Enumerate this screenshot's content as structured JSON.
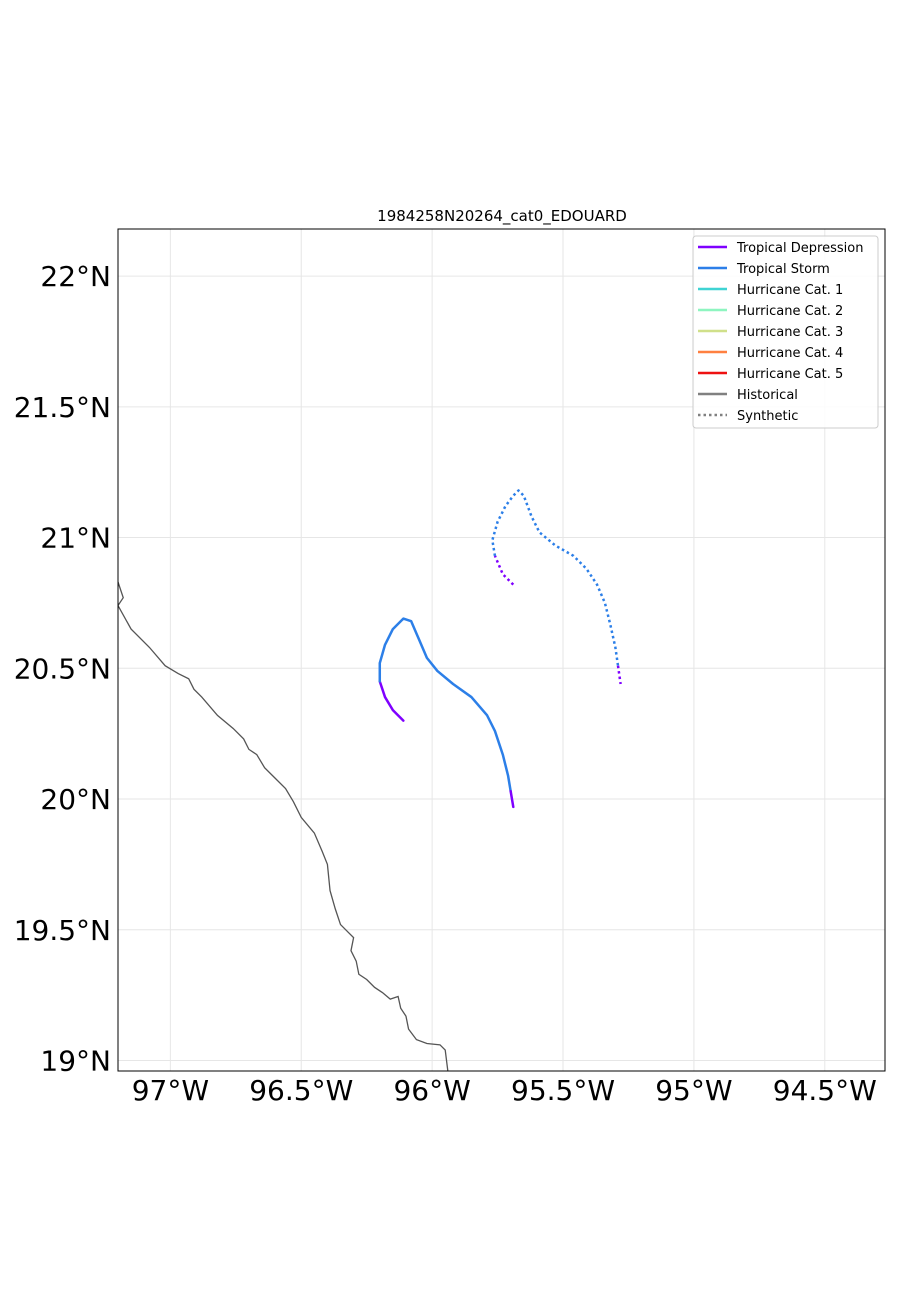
{
  "title": "1984258N20264_cat0_EDOUARD",
  "map": {
    "lon_range": [
      -97.2,
      -94.27
    ],
    "lat_range": [
      18.96,
      22.18
    ],
    "gridlines": true
  },
  "axes": {
    "x_ticks": [
      {
        "value": -97.0,
        "label": "97°W"
      },
      {
        "value": -96.5,
        "label": "96.5°W"
      },
      {
        "value": -96.0,
        "label": "96°W"
      },
      {
        "value": -95.5,
        "label": "95.5°W"
      },
      {
        "value": -95.0,
        "label": "95°W"
      },
      {
        "value": -94.5,
        "label": "94.5°W"
      }
    ],
    "y_ticks": [
      {
        "value": 19.0,
        "label": "19°N"
      },
      {
        "value": 19.5,
        "label": "19.5°N"
      },
      {
        "value": 20.0,
        "label": "20°N"
      },
      {
        "value": 20.5,
        "label": "20.5°N"
      },
      {
        "value": 21.0,
        "label": "21°N"
      },
      {
        "value": 21.5,
        "label": "21.5°N"
      },
      {
        "value": 22.0,
        "label": "22°N"
      }
    ]
  },
  "legend": {
    "placement": "top-right",
    "entries": [
      {
        "label": "Tropical Depression",
        "color": "#7f00ff",
        "style": "solid"
      },
      {
        "label": "Tropical Storm",
        "color": "#2c7fe8",
        "style": "solid"
      },
      {
        "label": "Hurricane Cat. 1",
        "color": "#3fd3d3",
        "style": "solid"
      },
      {
        "label": "Hurricane Cat. 2",
        "color": "#8ef5c0",
        "style": "solid"
      },
      {
        "label": "Hurricane Cat. 3",
        "color": "#d0e08a",
        "style": "solid"
      },
      {
        "label": "Hurricane Cat. 4",
        "color": "#ff8040",
        "style": "solid"
      },
      {
        "label": "Hurricane Cat. 5",
        "color": "#ee1111",
        "style": "solid"
      },
      {
        "label": "Historical",
        "color": "#808080",
        "style": "solid"
      },
      {
        "label": "Synthetic",
        "color": "#808080",
        "style": "dotted"
      }
    ]
  },
  "coastline": {
    "color": "#555555",
    "points": [
      [
        -97.2,
        20.83
      ],
      [
        -97.18,
        20.77
      ],
      [
        -97.2,
        20.74
      ],
      [
        -97.15,
        20.65
      ],
      [
        -97.08,
        20.58
      ],
      [
        -97.02,
        20.51
      ],
      [
        -96.97,
        20.48
      ],
      [
        -96.93,
        20.46
      ],
      [
        -96.91,
        20.42
      ],
      [
        -96.88,
        20.39
      ],
      [
        -96.82,
        20.32
      ],
      [
        -96.76,
        20.27
      ],
      [
        -96.72,
        20.23
      ],
      [
        -96.7,
        20.19
      ],
      [
        -96.67,
        20.17
      ],
      [
        -96.64,
        20.12
      ],
      [
        -96.6,
        20.08
      ],
      [
        -96.56,
        20.04
      ],
      [
        -96.53,
        19.99
      ],
      [
        -96.5,
        19.93
      ],
      [
        -96.45,
        19.87
      ],
      [
        -96.42,
        19.8
      ],
      [
        -96.4,
        19.75
      ],
      [
        -96.39,
        19.65
      ],
      [
        -96.37,
        19.58
      ],
      [
        -96.35,
        19.52
      ],
      [
        -96.32,
        19.49
      ],
      [
        -96.3,
        19.47
      ],
      [
        -96.31,
        19.42
      ],
      [
        -96.29,
        19.38
      ],
      [
        -96.28,
        19.33
      ],
      [
        -96.25,
        19.31
      ],
      [
        -96.22,
        19.28
      ],
      [
        -96.19,
        19.26
      ],
      [
        -96.16,
        19.235
      ],
      [
        -96.13,
        19.245
      ],
      [
        -96.12,
        19.2
      ],
      [
        -96.1,
        19.17
      ],
      [
        -96.09,
        19.12
      ],
      [
        -96.06,
        19.08
      ],
      [
        -96.02,
        19.065
      ],
      [
        -95.97,
        19.06
      ],
      [
        -95.95,
        19.04
      ],
      [
        -95.94,
        18.96
      ]
    ]
  },
  "tracks": [
    {
      "type": "historical",
      "segments": [
        {
          "category": "Tropical Depression",
          "points": [
            [
              -96.11,
              20.3
            ],
            [
              -96.15,
              20.34
            ],
            [
              -96.18,
              20.39
            ],
            [
              -96.2,
              20.45
            ]
          ]
        },
        {
          "category": "Tropical Storm",
          "points": [
            [
              -96.2,
              20.45
            ],
            [
              -96.2,
              20.52
            ],
            [
              -96.18,
              20.59
            ],
            [
              -96.15,
              20.65
            ],
            [
              -96.11,
              20.69
            ],
            [
              -96.08,
              20.68
            ],
            [
              -96.05,
              20.61
            ],
            [
              -96.02,
              20.54
            ],
            [
              -95.98,
              20.49
            ],
            [
              -95.92,
              20.44
            ],
            [
              -95.85,
              20.39
            ],
            [
              -95.79,
              20.32
            ],
            [
              -95.76,
              20.26
            ],
            [
              -95.73,
              20.17
            ],
            [
              -95.71,
              20.09
            ],
            [
              -95.7,
              20.03
            ]
          ]
        },
        {
          "category": "Tropical Depression",
          "points": [
            [
              -95.7,
              20.03
            ],
            [
              -95.69,
              19.97
            ]
          ]
        }
      ]
    },
    {
      "type": "synthetic",
      "segments": [
        {
          "category": "Tropical Depression",
          "points": [
            [
              -95.69,
              20.82
            ],
            [
              -95.73,
              20.86
            ],
            [
              -95.76,
              20.93
            ]
          ]
        },
        {
          "category": "Tropical Storm",
          "points": [
            [
              -95.76,
              20.93
            ],
            [
              -95.77,
              20.99
            ],
            [
              -95.75,
              21.06
            ],
            [
              -95.72,
              21.12
            ],
            [
              -95.69,
              21.16
            ],
            [
              -95.67,
              21.18
            ],
            [
              -95.65,
              21.16
            ],
            [
              -95.62,
              21.08
            ],
            [
              -95.59,
              21.02
            ],
            [
              -95.53,
              20.97
            ],
            [
              -95.46,
              20.93
            ],
            [
              -95.41,
              20.88
            ],
            [
              -95.37,
              20.82
            ],
            [
              -95.34,
              20.75
            ],
            [
              -95.32,
              20.67
            ],
            [
              -95.3,
              20.58
            ],
            [
              -95.29,
              20.51
            ]
          ]
        },
        {
          "category": "Tropical Depression",
          "points": [
            [
              -95.29,
              20.51
            ],
            [
              -95.28,
              20.44
            ]
          ]
        }
      ]
    }
  ]
}
